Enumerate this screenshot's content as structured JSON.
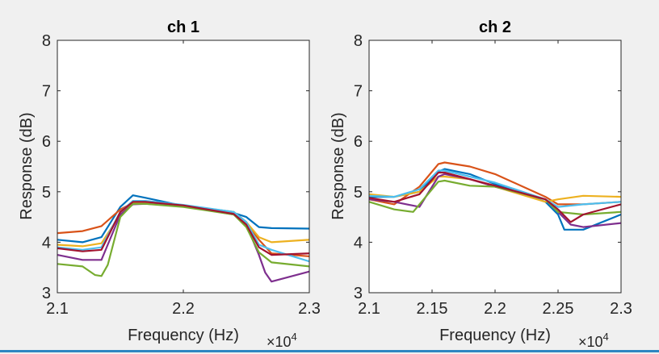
{
  "colors": {
    "background": "#f0f0f0",
    "plot_bg": "#ffffff",
    "axes": "#262626",
    "bottom_rule": "#2e86c1"
  },
  "chart_data": [
    {
      "type": "line",
      "title": "ch 1",
      "xlabel": "Frequency (Hz)",
      "ylabel": "Response (dB)",
      "x_exponent_label": "×10",
      "x_exponent_power": "4",
      "xlim": [
        2.1,
        2.3
      ],
      "ylim": [
        3,
        8
      ],
      "xticks": [
        2.1,
        2.2,
        2.3
      ],
      "xtick_labels": [
        "2.1",
        "2.2",
        "2.3"
      ],
      "yticks": [
        3,
        4,
        5,
        6,
        7,
        8
      ],
      "ytick_labels": [
        "3",
        "4",
        "5",
        "6",
        "7",
        "8"
      ],
      "grid": false,
      "series": [
        {
          "color": "#0072bd",
          "x": [
            2.1,
            2.12,
            2.135,
            2.15,
            2.16,
            2.17,
            2.2,
            2.24,
            2.25,
            2.26,
            2.27,
            2.3
          ],
          "y": [
            4.05,
            4.0,
            4.1,
            4.7,
            4.93,
            4.88,
            4.72,
            4.58,
            4.5,
            4.3,
            4.28,
            4.27
          ]
        },
        {
          "color": "#d95319",
          "x": [
            2.1,
            2.12,
            2.135,
            2.15,
            2.16,
            2.17,
            2.2,
            2.24,
            2.25,
            2.26,
            2.27,
            2.3
          ],
          "y": [
            4.18,
            4.22,
            4.32,
            4.65,
            4.78,
            4.78,
            4.73,
            4.6,
            4.4,
            4.05,
            3.78,
            3.72
          ]
        },
        {
          "color": "#edb120",
          "x": [
            2.1,
            2.12,
            2.135,
            2.15,
            2.16,
            2.17,
            2.2,
            2.24,
            2.25,
            2.26,
            2.27,
            2.3
          ],
          "y": [
            3.95,
            3.92,
            3.98,
            4.55,
            4.78,
            4.78,
            4.72,
            4.6,
            4.4,
            4.1,
            4.0,
            4.05
          ]
        },
        {
          "color": "#7e2f8e",
          "x": [
            2.1,
            2.12,
            2.135,
            2.15,
            2.16,
            2.17,
            2.2,
            2.24,
            2.25,
            2.26,
            2.265,
            2.27,
            2.3
          ],
          "y": [
            3.75,
            3.65,
            3.65,
            4.55,
            4.75,
            4.76,
            4.72,
            4.55,
            4.35,
            3.75,
            3.4,
            3.22,
            3.42
          ]
        },
        {
          "color": "#77ac30",
          "x": [
            2.1,
            2.12,
            2.13,
            2.135,
            2.14,
            2.15,
            2.16,
            2.17,
            2.2,
            2.24,
            2.25,
            2.26,
            2.27,
            2.3
          ],
          "y": [
            3.57,
            3.52,
            3.35,
            3.33,
            3.55,
            4.5,
            4.76,
            4.76,
            4.7,
            4.55,
            4.3,
            3.8,
            3.6,
            3.52
          ]
        },
        {
          "color": "#4dbeee",
          "x": [
            2.1,
            2.12,
            2.135,
            2.15,
            2.16,
            2.17,
            2.2,
            2.24,
            2.25,
            2.26,
            2.27,
            2.3
          ],
          "y": [
            3.9,
            3.85,
            3.9,
            4.6,
            4.82,
            4.82,
            4.74,
            4.6,
            4.4,
            3.95,
            3.85,
            3.62
          ]
        },
        {
          "color": "#a2142f",
          "x": [
            2.1,
            2.12,
            2.135,
            2.15,
            2.16,
            2.17,
            2.2,
            2.24,
            2.25,
            2.26,
            2.27,
            2.3
          ],
          "y": [
            3.88,
            3.82,
            3.85,
            4.6,
            4.8,
            4.8,
            4.73,
            4.56,
            4.35,
            3.9,
            3.75,
            3.78
          ]
        }
      ]
    },
    {
      "type": "line",
      "title": "ch 2",
      "xlabel": "Frequency (Hz)",
      "ylabel": "Response (dB)",
      "x_exponent_label": "×10",
      "x_exponent_power": "4",
      "xlim": [
        2.1,
        2.3
      ],
      "ylim": [
        3,
        8
      ],
      "xticks": [
        2.1,
        2.15,
        2.2,
        2.25,
        2.3
      ],
      "xtick_labels": [
        "2.1",
        "2.15",
        "2.2",
        "2.25",
        "2.3"
      ],
      "yticks": [
        3,
        4,
        5,
        6,
        7,
        8
      ],
      "ytick_labels": [
        "3",
        "4",
        "5",
        "6",
        "7",
        "8"
      ],
      "grid": false,
      "series": [
        {
          "color": "#0072bd",
          "x": [
            2.1,
            2.12,
            2.14,
            2.155,
            2.16,
            2.18,
            2.2,
            2.24,
            2.25,
            2.255,
            2.27,
            2.3
          ],
          "y": [
            4.9,
            4.9,
            5.0,
            5.4,
            5.45,
            5.35,
            5.15,
            4.8,
            4.55,
            4.25,
            4.25,
            4.55
          ]
        },
        {
          "color": "#d95319",
          "x": [
            2.1,
            2.12,
            2.14,
            2.155,
            2.16,
            2.18,
            2.2,
            2.24,
            2.25,
            2.27,
            2.3
          ],
          "y": [
            4.85,
            4.75,
            5.1,
            5.55,
            5.58,
            5.5,
            5.35,
            4.9,
            4.75,
            4.75,
            4.8
          ]
        },
        {
          "color": "#edb120",
          "x": [
            2.1,
            2.12,
            2.14,
            2.155,
            2.16,
            2.18,
            2.2,
            2.24,
            2.25,
            2.27,
            2.3
          ],
          "y": [
            4.95,
            4.9,
            5.0,
            5.3,
            5.3,
            5.25,
            5.1,
            4.8,
            4.85,
            4.92,
            4.9
          ]
        },
        {
          "color": "#7e2f8e",
          "x": [
            2.1,
            2.12,
            2.14,
            2.155,
            2.16,
            2.18,
            2.2,
            2.24,
            2.25,
            2.26,
            2.27,
            2.3
          ],
          "y": [
            4.85,
            4.8,
            4.7,
            5.3,
            5.35,
            5.25,
            5.1,
            4.85,
            4.6,
            4.35,
            4.3,
            4.38
          ]
        },
        {
          "color": "#77ac30",
          "x": [
            2.1,
            2.12,
            2.135,
            2.155,
            2.16,
            2.18,
            2.2,
            2.24,
            2.25,
            2.27,
            2.3
          ],
          "y": [
            4.8,
            4.65,
            4.6,
            5.2,
            5.22,
            5.12,
            5.1,
            4.85,
            4.6,
            4.55,
            4.6
          ]
        },
        {
          "color": "#4dbeee",
          "x": [
            2.1,
            2.12,
            2.14,
            2.155,
            2.16,
            2.18,
            2.2,
            2.24,
            2.25,
            2.27,
            2.3
          ],
          "y": [
            4.92,
            4.9,
            5.05,
            5.42,
            5.42,
            5.3,
            5.18,
            4.85,
            4.7,
            4.75,
            4.8
          ]
        },
        {
          "color": "#a2142f",
          "x": [
            2.1,
            2.12,
            2.14,
            2.155,
            2.16,
            2.18,
            2.2,
            2.24,
            2.25,
            2.26,
            2.27,
            2.3
          ],
          "y": [
            4.88,
            4.8,
            4.95,
            5.38,
            5.38,
            5.25,
            5.12,
            4.85,
            4.65,
            4.4,
            4.55,
            4.75
          ]
        }
      ]
    }
  ]
}
